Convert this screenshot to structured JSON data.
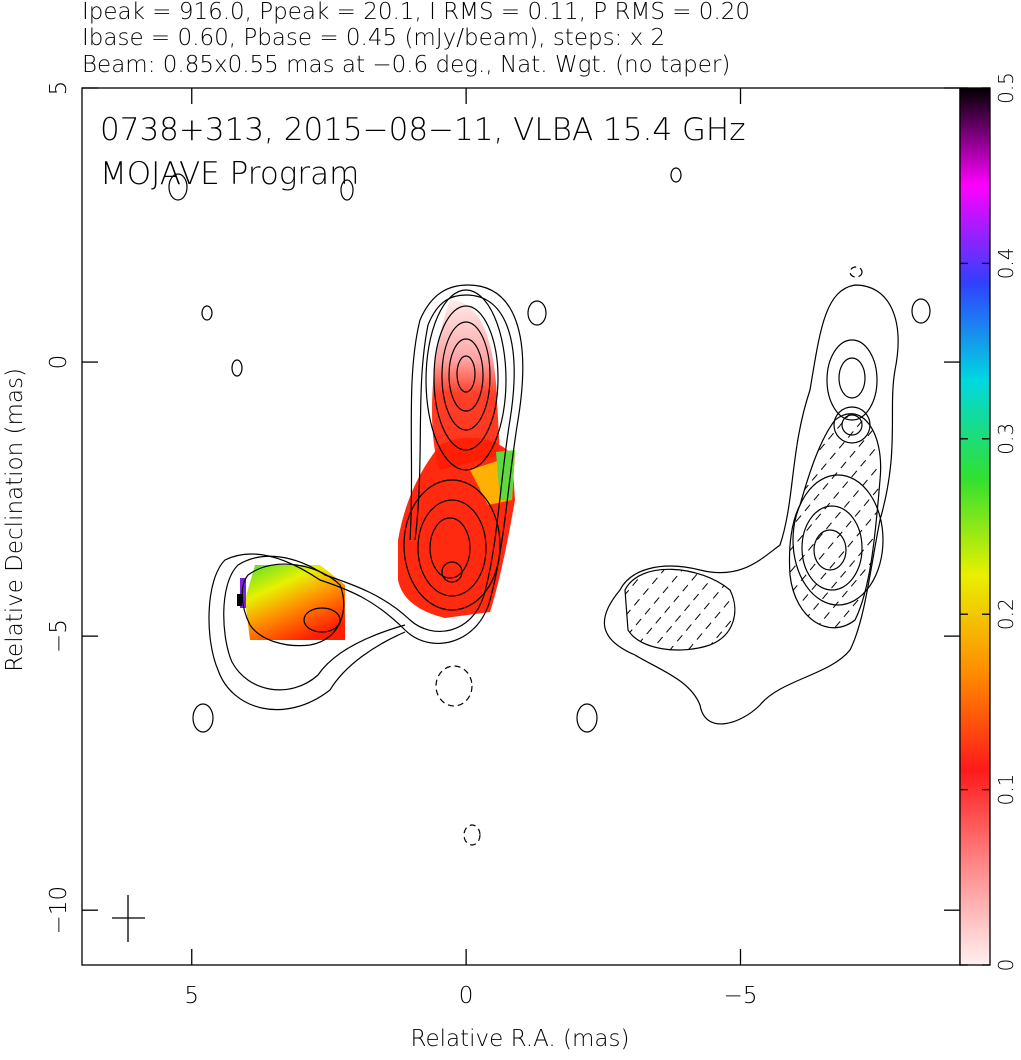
{
  "chart_data": {
    "type": "contour",
    "header": [
      "Ipeak = 916.0, Ppeak = 20.1, I RMS = 0.11, P RMS = 0.20",
      "Ibase = 0.60, Pbase = 0.45 (mJy/beam), steps: x 2",
      "Beam: 0.85x0.55 mas at −0.6 deg., Nat. Wgt. (no taper)"
    ],
    "title": "0738+313, 2015−08−11, VLBA 15.4 GHz",
    "subtitle": "MOJAVE Program",
    "x_label": "Relative R.A. (mas)",
    "y_label": "Relative Declination (mas)",
    "xlim": [
      7,
      -9
    ],
    "ylim": [
      -11,
      5
    ],
    "xticks": [
      5,
      0,
      {
        "value": -5,
        "label": "−5"
      }
    ],
    "yticks": [
      {
        "value": -10,
        "label": "−10"
      },
      {
        "value": -5,
        "label": "−5"
      },
      0,
      5
    ],
    "colorbar": {
      "lim": [
        0,
        0.5
      ],
      "ticks": [
        0,
        0.1,
        0.2,
        0.3,
        0.4,
        0.5
      ],
      "colors": [
        "#fff0f0",
        "#ff8a8a",
        "#ff1a1a",
        "#ff8c00",
        "#e8f000",
        "#30e030",
        "#00d8e0",
        "#3040ff",
        "#ff00ff",
        "#000000"
      ]
    }
  }
}
